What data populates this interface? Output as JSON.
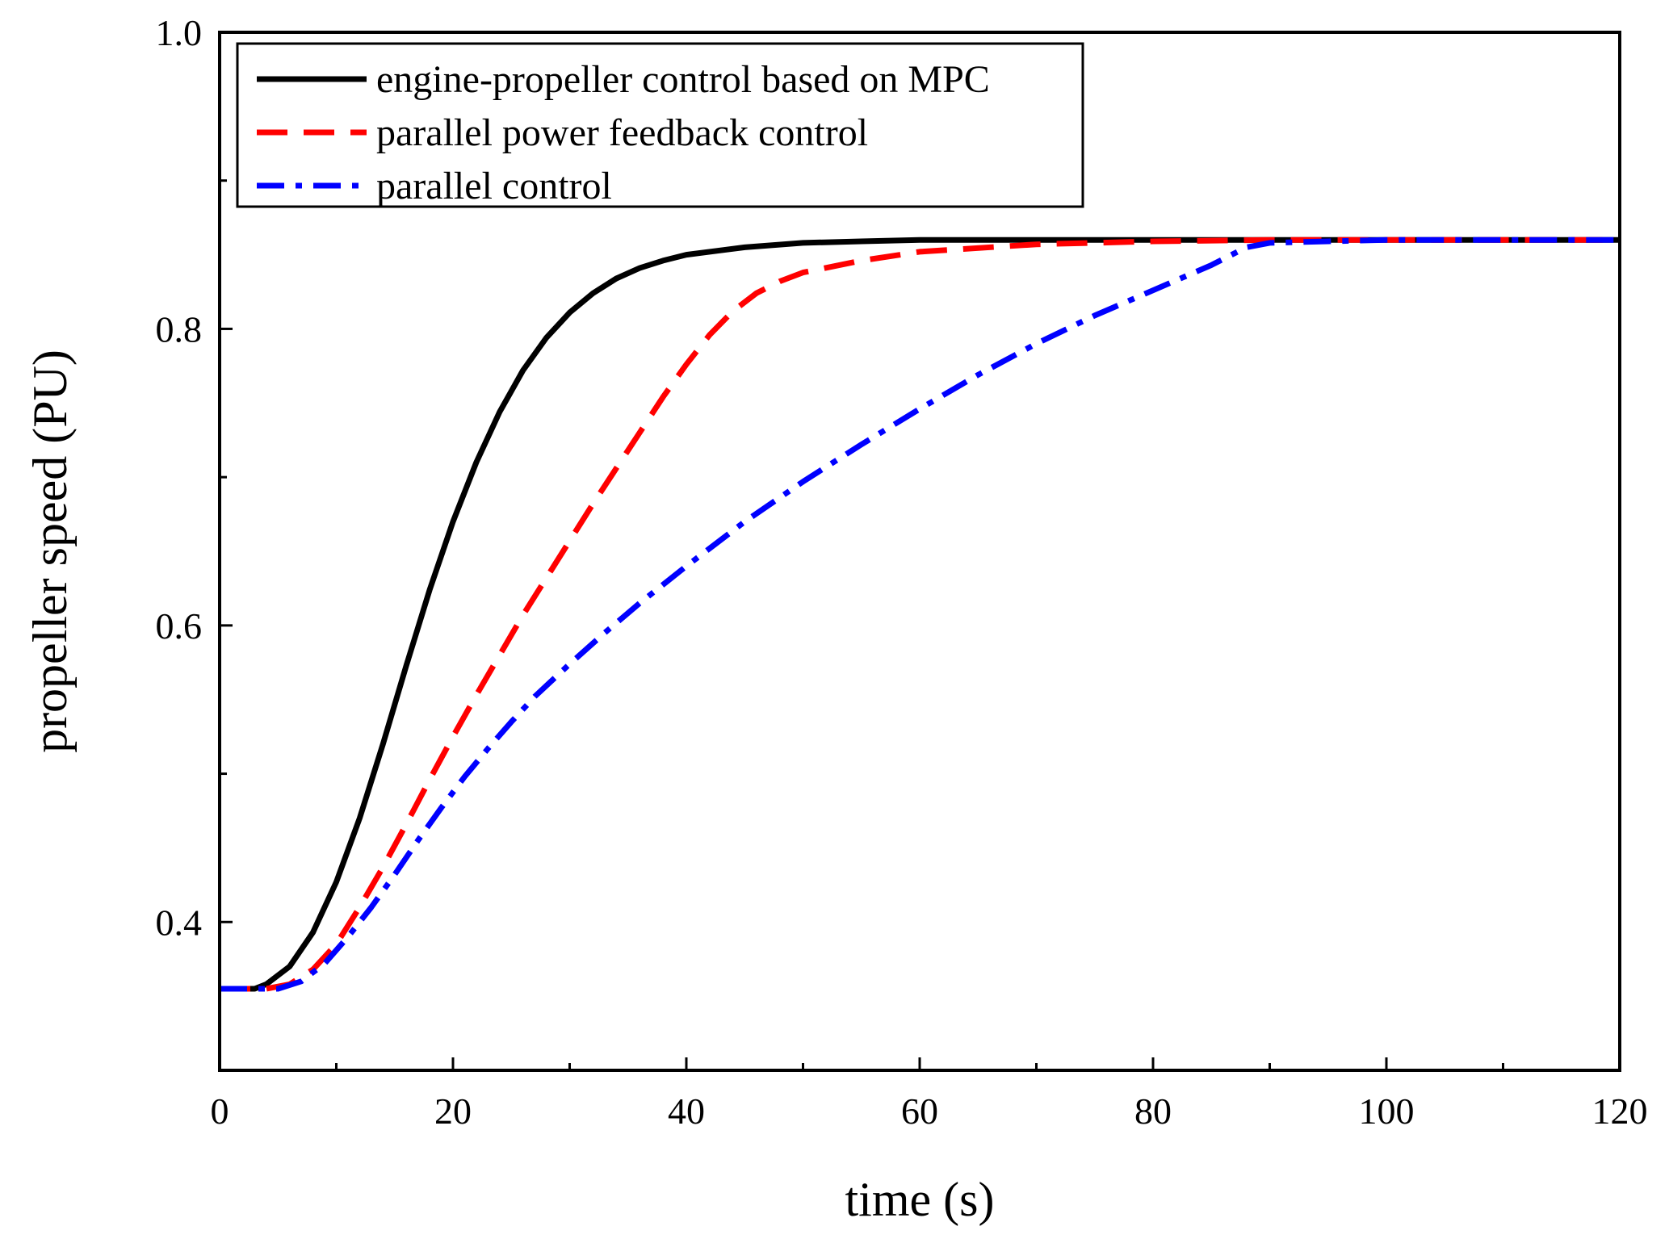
{
  "chart_data": {
    "type": "line",
    "title": "",
    "xlabel": "time (s)",
    "ylabel": "propeller speed (PU)",
    "xlim": [
      0,
      120
    ],
    "ylim": [
      0.3,
      1.0
    ],
    "x_ticks": [
      0,
      20,
      40,
      60,
      80,
      100,
      120
    ],
    "x_tick_labels": [
      "0",
      "20",
      "40",
      "60",
      "80",
      "100",
      "120"
    ],
    "x_minor_ticks": [
      10,
      30,
      50,
      70,
      90,
      110
    ],
    "y_ticks": [
      0.4,
      0.6,
      0.8,
      1.0
    ],
    "y_tick_labels": [
      "0.4",
      "0.6",
      "0.8",
      "1.0"
    ],
    "y_minor_ticks": [
      0.5,
      0.7,
      0.9
    ],
    "grid": false,
    "legend_position": "top-left",
    "series": [
      {
        "name": "engine-propeller control based on MPC",
        "color": "#000000",
        "style": "solid",
        "x": [
          0,
          3,
          4,
          6,
          8,
          10,
          12,
          14,
          16,
          18,
          20,
          22,
          24,
          26,
          28,
          30,
          32,
          34,
          36,
          38,
          40,
          45,
          50,
          55,
          60,
          70,
          80,
          90,
          100,
          110,
          120
        ],
        "y": [
          0.355,
          0.355,
          0.358,
          0.37,
          0.393,
          0.427,
          0.47,
          0.52,
          0.573,
          0.624,
          0.67,
          0.71,
          0.744,
          0.772,
          0.794,
          0.811,
          0.824,
          0.834,
          0.841,
          0.846,
          0.85,
          0.855,
          0.858,
          0.859,
          0.86,
          0.86,
          0.86,
          0.86,
          0.86,
          0.86,
          0.86
        ]
      },
      {
        "name": "parallel power feedback control",
        "color": "#ff0000",
        "style": "dashed",
        "x": [
          0,
          4,
          6,
          8,
          10,
          12,
          14,
          16,
          18,
          20,
          22,
          24,
          26,
          28,
          30,
          32,
          34,
          36,
          38,
          40,
          42,
          44,
          46,
          48,
          50,
          55,
          60,
          70,
          80,
          90,
          100,
          120
        ],
        "y": [
          0.355,
          0.355,
          0.358,
          0.368,
          0.385,
          0.41,
          0.437,
          0.466,
          0.496,
          0.525,
          0.553,
          0.58,
          0.607,
          0.632,
          0.657,
          0.682,
          0.706,
          0.73,
          0.754,
          0.776,
          0.796,
          0.812,
          0.824,
          0.832,
          0.838,
          0.846,
          0.852,
          0.857,
          0.859,
          0.86,
          0.86,
          0.86
        ]
      },
      {
        "name": "parallel control",
        "color": "#0000ff",
        "style": "dashdot",
        "x": [
          0,
          5,
          7,
          9,
          11,
          13,
          15,
          17,
          19,
          21,
          23,
          25,
          27,
          30,
          33,
          36,
          40,
          45,
          50,
          55,
          60,
          65,
          70,
          75,
          80,
          85,
          88,
          90,
          95,
          100,
          110,
          120
        ],
        "y": [
          0.355,
          0.355,
          0.36,
          0.372,
          0.39,
          0.41,
          0.432,
          0.455,
          0.477,
          0.498,
          0.517,
          0.535,
          0.552,
          0.574,
          0.595,
          0.615,
          0.64,
          0.67,
          0.697,
          0.722,
          0.746,
          0.769,
          0.79,
          0.809,
          0.826,
          0.843,
          0.855,
          0.858,
          0.859,
          0.86,
          0.86,
          0.86
        ]
      }
    ]
  }
}
